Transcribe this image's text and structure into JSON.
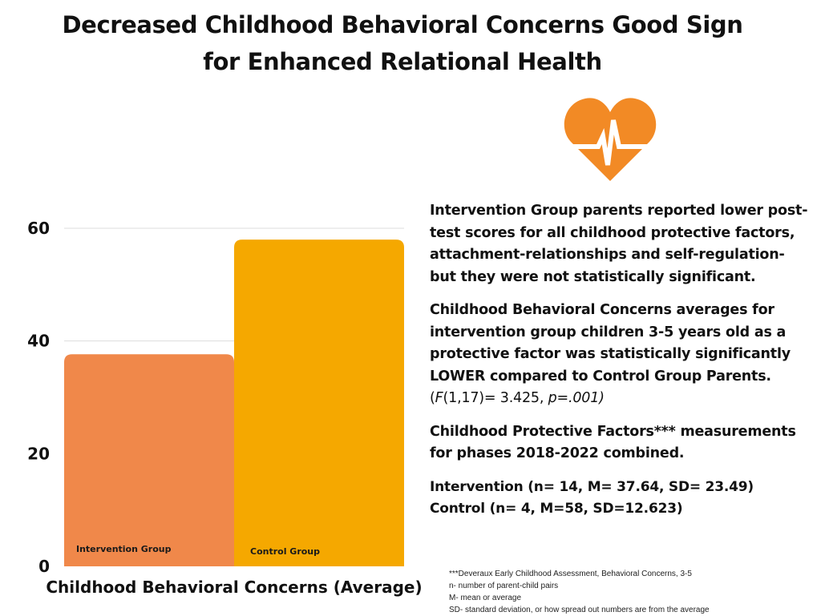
{
  "title": {
    "line1": "Decreased Childhood Behavioral Concerns Good Sign",
    "line2": "for Enhanced Relational Health"
  },
  "icon": "heart-pulse-icon",
  "colors": {
    "heart": "#f28a25",
    "intervention_bar": "#f0884a",
    "control_bar": "#f5a800",
    "gridline": "#dddddd"
  },
  "chart_data": {
    "type": "bar",
    "categories": [
      "Intervention Group",
      "Control Group"
    ],
    "values": [
      37.64,
      58
    ],
    "title": "",
    "xlabel": "Childhood Behavioral Concerns (Average)",
    "ylabel": "",
    "ylim": [
      0,
      60
    ],
    "yticks": [
      0,
      20,
      40,
      60
    ],
    "grid": true,
    "legend": "none"
  },
  "text": {
    "p1": "Intervention Group parents reported lower post-test scores for all childhood protective factors, attachment-relationships and self-regulation- but they were not statistically significant.",
    "p2": "Childhood Behavioral Concerns averages for intervention group children 3-5 years old as a protective factor was statistically significantly LOWER compared to Control Group Parents.",
    "p2_stats": "(F(1,17)= 3.425, p=.001)",
    "p3": "Childhood Protective Factors*** measurements for phases 2018-2022 combined.",
    "p4_line1": "Intervention (n= 14, M= 37.64, SD= 23.49)",
    "p4_line2": "Control (n= 4, M=58, SD=12.623)"
  },
  "footnotes": [
    "***Deveraux Early Childhood Assessment, Behavioral Concerns, 3-5",
    "n- number of parent-child pairs",
    "M- mean or average",
    "SD- standard deviation, or how spread out numbers are from the average"
  ]
}
